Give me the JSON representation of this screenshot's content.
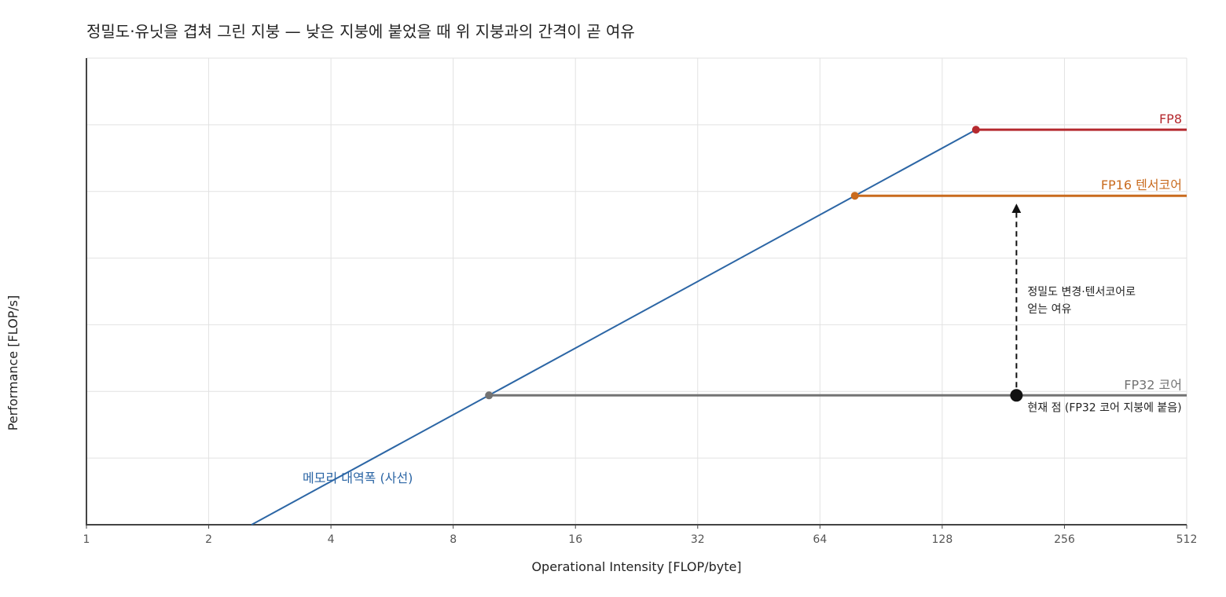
{
  "title": "정밀도·유닛을 겹쳐 그린 지붕 — 낮은 지붕에 붙었을 때 위 지붕과의 간격이 곧 여유",
  "chart_data": {
    "type": "line",
    "title": "정밀도·유닛을 겹쳐 그린 지붕 — 낮은 지붕에 붙었을 때 위 지붕과의 간격이 곧 여유",
    "xlabel": "Operational Intensity [FLOP/byte]",
    "ylabel": "Performance [FLOP/s]",
    "x_scale": "log2",
    "xlim": [
      1,
      512
    ],
    "x_ticks": [
      1,
      2,
      4,
      8,
      16,
      32,
      64,
      128,
      256,
      512
    ],
    "x_tick_labels": [
      "1",
      "2",
      "4",
      "8",
      "16",
      "32",
      "64",
      "128",
      "256",
      "512"
    ],
    "y_scale": "log2",
    "ylim": [
      1,
      128
    ],
    "y_tick_labels_shown": false,
    "grid": true,
    "bandwidth_slope": 1,
    "series": [
      {
        "name": "메모리 대역폭 (사선)",
        "kind": "bandwidth",
        "color": "#2c66a5",
        "x": [
          2.55,
          155
        ],
        "y": [
          1,
          60.8
        ]
      },
      {
        "name": "FP32 코어",
        "kind": "roof",
        "color": "#737373",
        "ridge_x": 9.8,
        "ridge_y": 3.84,
        "x": [
          9.8,
          512
        ],
        "y": [
          3.84,
          3.84
        ]
      },
      {
        "name": "FP16 텐서코어",
        "kind": "roof",
        "color": "#c96b1e",
        "ridge_x": 78,
        "ridge_y": 30.6,
        "x": [
          78,
          512
        ],
        "y": [
          30.6,
          30.6
        ]
      },
      {
        "name": "FP8",
        "kind": "roof",
        "color": "#b5292e",
        "ridge_x": 155,
        "ridge_y": 60.8,
        "x": [
          155,
          512
        ],
        "y": [
          60.8,
          60.8
        ]
      }
    ],
    "current_point": {
      "label": "현재 점 (FP32 코어 지붕에 붙음)",
      "x": 195,
      "y": 3.84,
      "color": "#111111"
    },
    "headroom_arrow": {
      "x": 195,
      "from_y": 3.84,
      "to_y": 30.6,
      "label_lines": [
        "정밀도 변경·텐서코어로",
        "얻는 여유"
      ]
    },
    "bandwidth_label": "메모리 대역폭 (사선)"
  }
}
